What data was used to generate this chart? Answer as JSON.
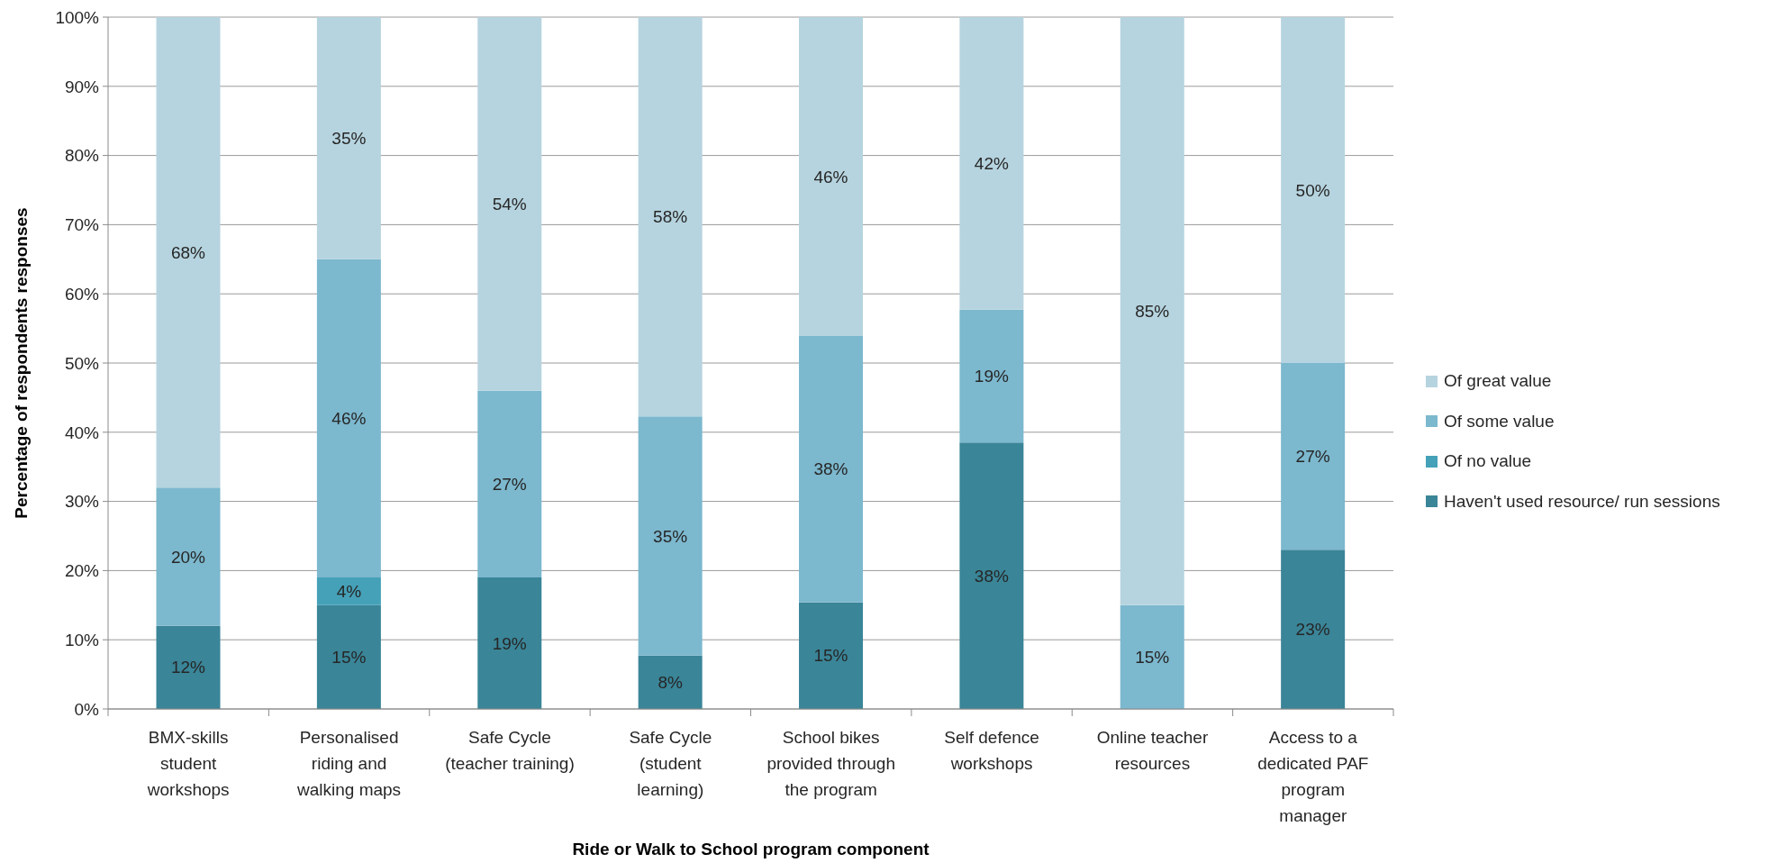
{
  "chart_data": {
    "type": "bar",
    "stacked": true,
    "xlabel": "Ride or Walk to School program component",
    "ylabel": "Percentage of respondents responses",
    "categories": [
      "BMX-skills student workshops",
      "Personalised riding and walking maps",
      "Safe Cycle (teacher training)",
      "Safe Cycle (student learning)",
      "School bikes provided through the program",
      "Self defence workshops",
      "Online teacher resources",
      "Access to a dedicated PAF program manager"
    ],
    "series": [
      {
        "name": "Haven't used resource/ run sessions",
        "color": "#3a8598",
        "values": [
          12,
          15,
          19,
          7.7,
          15.4,
          38.5,
          null,
          23
        ],
        "value_labels": [
          "12%",
          "15%",
          "19%",
          "8%",
          "15%",
          "38%",
          null,
          "23%"
        ]
      },
      {
        "name": "Of no value",
        "color": "#45a1b8",
        "values": [
          null,
          4,
          null,
          null,
          null,
          null,
          null,
          null
        ],
        "value_labels": [
          null,
          "4%",
          null,
          null,
          null,
          null,
          null,
          null
        ]
      },
      {
        "name": "Of some value",
        "color": "#7cb8ce",
        "values": [
          20,
          46,
          27,
          34.6,
          38.5,
          19.2,
          15,
          27
        ],
        "value_labels": [
          "20%",
          "46%",
          "27%",
          "35%",
          "38%",
          "19%",
          "15%",
          "27%"
        ]
      },
      {
        "name": "Of great value",
        "color": "#b6d4df",
        "values": [
          68,
          35,
          54,
          57.7,
          46.1,
          42.3,
          85,
          50
        ],
        "value_labels": [
          "68%",
          "35%",
          "54%",
          "58%",
          "46%",
          "42%",
          "85%",
          "50%"
        ]
      }
    ],
    "ylim": [
      0,
      100
    ],
    "yticks": [
      {
        "value": 0,
        "label": "0%"
      },
      {
        "value": 10,
        "label": "10%"
      },
      {
        "value": 20,
        "label": "20%"
      },
      {
        "value": 30,
        "label": "30%"
      },
      {
        "value": 40,
        "label": "40%"
      },
      {
        "value": 50,
        "label": "50%"
      },
      {
        "value": 60,
        "label": "60%"
      },
      {
        "value": 70,
        "label": "70%"
      },
      {
        "value": 80,
        "label": "80%"
      },
      {
        "value": 90,
        "label": "90%"
      },
      {
        "value": 100,
        "label": "100%"
      }
    ],
    "grid": "y",
    "legend": "right"
  }
}
